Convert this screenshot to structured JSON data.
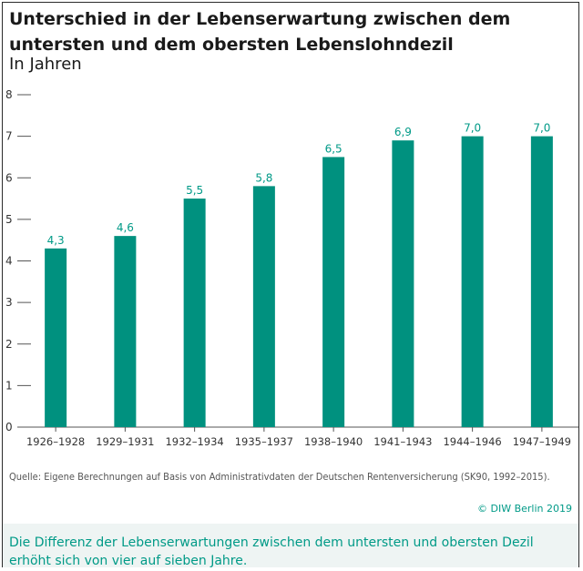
{
  "header": {
    "title": "Unterschied in der Lebenserwartung zwischen dem untersten und dem obersten Lebenslohndezil",
    "subtitle": "In Jahren"
  },
  "footer": {
    "source": "Quelle: Eigene Berechnungen auf Basis von Administrativdaten der Deutschen Rentenversicherung (SK90, 1992–2015).",
    "copyright": "© DIW Berlin 2019",
    "caption": "Die Differenz der Lebenserwartungen zwischen dem untersten und obersten Dezil erhöht sich von vier auf sieben Jahre."
  },
  "colors": {
    "bar": "#00917f",
    "label": "#009a87",
    "axis": "#555555",
    "tick_text": "#333333"
  },
  "chart_data": {
    "type": "bar",
    "title": "Unterschied in der Lebenserwartung zwischen dem untersten und dem obersten Lebenslohndezil",
    "subtitle": "In Jahren",
    "xlabel": "",
    "ylabel": "",
    "categories": [
      "1926–1928",
      "1929–1931",
      "1932–1934",
      "1935–1937",
      "1938–1940",
      "1941–1943",
      "1944–1946",
      "1947–1949"
    ],
    "values": [
      4.3,
      4.6,
      5.5,
      5.8,
      6.5,
      6.9,
      7.0,
      7.0
    ],
    "value_labels": [
      "4,3",
      "4,6",
      "5,5",
      "5,8",
      "6,5",
      "6,9",
      "7,0",
      "7,0"
    ],
    "ylim": [
      0,
      8
    ],
    "yticks": [
      0,
      1,
      2,
      3,
      4,
      5,
      6,
      7,
      8
    ],
    "grid": false,
    "legend": "none"
  }
}
